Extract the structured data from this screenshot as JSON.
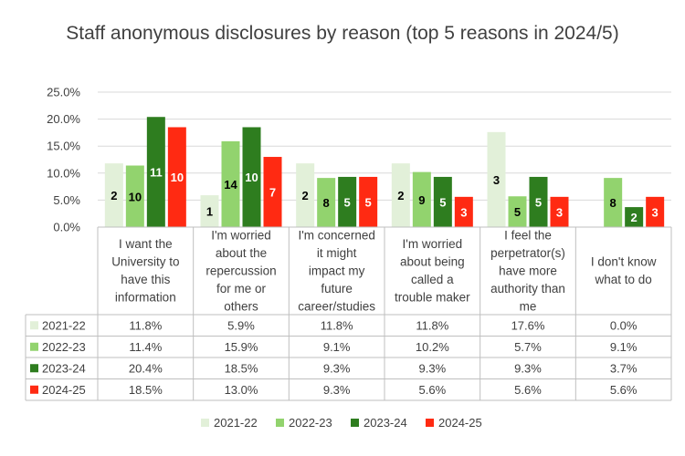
{
  "chart_data": {
    "type": "bar",
    "title": "Staff anonymous disclosures by reason (top 5 reasons in 2024/5)",
    "categories": [
      "I want the University to have this information",
      "I'm worried about the repercussion for me or others",
      "I'm concerned it might impact my future career/studies",
      "I'm worried about being called a trouble maker",
      "I feel the perpetrator(s) have more authority than me",
      "I don't know what to do"
    ],
    "category_lines": [
      [
        "I want the",
        "University to",
        "have this",
        "information"
      ],
      [
        "I'm worried",
        "about the",
        "repercussion",
        "for me or",
        "others"
      ],
      [
        "I'm concerned",
        "it might",
        "impact my",
        "future",
        "career/studies"
      ],
      [
        "I'm worried",
        "about being",
        "called a",
        "trouble maker"
      ],
      [
        "I feel the",
        "perpetrator(s)",
        "have more",
        "authority than",
        "me"
      ],
      [
        "I don't know",
        "what to do"
      ]
    ],
    "ylim": [
      0,
      25
    ],
    "yticks": [
      "0.0%",
      "5.0%",
      "10.0%",
      "15.0%",
      "20.0%",
      "25.0%"
    ],
    "grid": true,
    "legend_position": "bottom",
    "series": [
      {
        "name": "2021-22",
        "color": "#e2f0d9",
        "label_color": "#000000",
        "values": [
          11.8,
          5.9,
          11.8,
          11.8,
          17.6,
          0.0
        ],
        "table": [
          "11.8%",
          "5.9%",
          "11.8%",
          "11.8%",
          "17.6%",
          "0.0%"
        ],
        "labels": [
          "2",
          "1",
          "2",
          "2",
          "3",
          ""
        ]
      },
      {
        "name": "2022-23",
        "color": "#92d36e",
        "label_color": "#000000",
        "values": [
          11.4,
          15.9,
          9.1,
          10.2,
          5.7,
          9.1
        ],
        "table": [
          "11.4%",
          "15.9%",
          "9.1%",
          "10.2%",
          "5.7%",
          "9.1%"
        ],
        "labels": [
          "10",
          "14",
          "8",
          "9",
          "5",
          "8"
        ]
      },
      {
        "name": "2023-24",
        "color": "#2e7d1f",
        "label_color": "#ffffff",
        "values": [
          20.4,
          18.5,
          9.3,
          9.3,
          9.3,
          3.7
        ],
        "table": [
          "20.4%",
          "18.5%",
          "9.3%",
          "9.3%",
          "9.3%",
          "3.7%"
        ],
        "labels": [
          "11",
          "10",
          "5",
          "5",
          "5",
          "2"
        ]
      },
      {
        "name": "2024-25",
        "color": "#ff2a12",
        "label_color": "#ffffff",
        "values": [
          18.5,
          13.0,
          9.3,
          5.6,
          5.6,
          5.6
        ],
        "table": [
          "18.5%",
          "13.0%",
          "9.3%",
          "5.6%",
          "5.6%",
          "5.6%"
        ],
        "labels": [
          "10",
          "7",
          "5",
          "3",
          "3",
          "3"
        ]
      }
    ]
  }
}
